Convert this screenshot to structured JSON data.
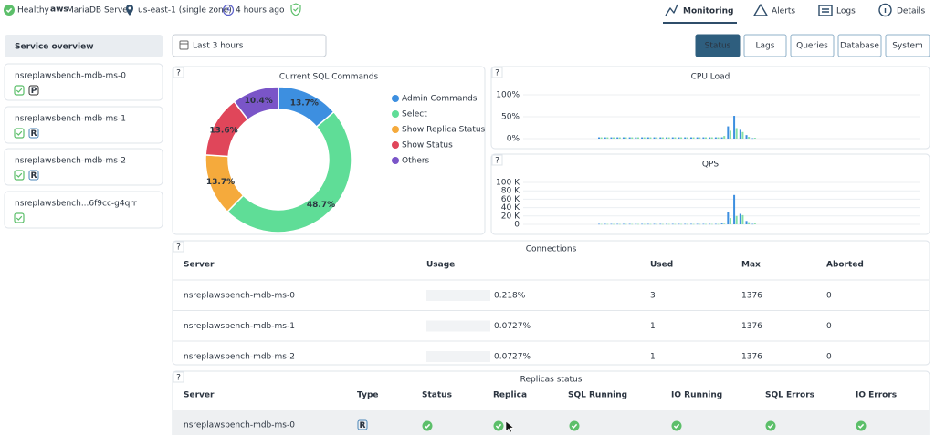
{
  "header": {
    "status": "Healthy",
    "provider": "aws",
    "engine": "MariaDB Server",
    "region": "us-east-1 (single zone)",
    "created": "4 hours ago",
    "tabs": [
      "Monitoring",
      "Alerts",
      "Logs",
      "Details"
    ]
  },
  "sidebar": {
    "title": "Service overview",
    "services": [
      {
        "name": "nsreplawsbench-mdb-ms-0",
        "role": "P"
      },
      {
        "name": "nsreplawsbench-mdb-ms-1",
        "role": "R"
      },
      {
        "name": "nsreplawsbench-mdb-ms-2",
        "role": "R"
      },
      {
        "name": "nsreplawsbench...6f9cc-g4qrr"
      }
    ]
  },
  "toolbar": {
    "range": "Last 3 hours",
    "views": [
      "Status",
      "Lags",
      "Queries",
      "Database",
      "System"
    ]
  },
  "sql_commands": {
    "type": "pie",
    "title": "Current SQL Commands",
    "help": "?",
    "categories": [
      "Admin Commands",
      "Select",
      "Show Replica Status",
      "Show Status",
      "Others"
    ],
    "values": [
      13.7,
      48.7,
      13.7,
      13.6,
      10.4
    ],
    "value_labels": [
      "13.7%",
      "48.7%",
      "13.7%",
      "13.6%",
      "10.4%"
    ],
    "colors": [
      "#3d8fe0",
      "#5fdd97",
      "#f5aa3c",
      "#e0465a",
      "#7a55c8"
    ]
  },
  "cpu_load": {
    "type": "bar",
    "title": "CPU Load",
    "help": "?",
    "ylim": [
      0,
      100
    ],
    "yticks": [
      {
        "value": 0,
        "label": "0%"
      },
      {
        "value": 50,
        "label": "50%"
      },
      {
        "value": 100,
        "label": "100%"
      }
    ],
    "grid": true,
    "series": [
      {
        "color": "#3d8fe0",
        "values": [
          3,
          3,
          3,
          3,
          3,
          3,
          3,
          3,
          3,
          3,
          3,
          3,
          3,
          3,
          3,
          3,
          3,
          3,
          3,
          3,
          3,
          28,
          52,
          20,
          8,
          1
        ]
      },
      {
        "color": "#86e0a6",
        "values": [
          3,
          3,
          3,
          3,
          3,
          3,
          3,
          3,
          3,
          3,
          3,
          3,
          3,
          3,
          3,
          3,
          3,
          3,
          3,
          3,
          6,
          18,
          24,
          15,
          4,
          2
        ]
      }
    ]
  },
  "qps": {
    "type": "bar",
    "title": "QPS",
    "help": "?",
    "ylim": [
      0,
      100000
    ],
    "yticks": [
      0,
      {
        "value": 20000,
        "label": "20 K"
      },
      {
        "value": 40000,
        "label": "40 K"
      },
      {
        "value": 60000,
        "label": "60 K"
      },
      {
        "value": 80000,
        "label": "80 K"
      },
      {
        "value": 100000,
        "label": "100 K"
      }
    ],
    "grid": true,
    "series": [
      {
        "color": "#3d8fe0",
        "values": [
          1000,
          1000,
          1000,
          1000,
          1000,
          1000,
          1000,
          1000,
          1000,
          1000,
          1000,
          1000,
          1000,
          1000,
          1000,
          1000,
          1000,
          1000,
          1000,
          1000,
          2000,
          30000,
          70000,
          25000,
          8000,
          1000
        ]
      },
      {
        "color": "#86e0a6",
        "values": [
          800,
          800,
          800,
          800,
          800,
          800,
          800,
          800,
          800,
          800,
          800,
          800,
          800,
          800,
          800,
          800,
          800,
          800,
          800,
          800,
          1500,
          15000,
          20000,
          22000,
          5000,
          2000
        ]
      }
    ]
  },
  "connections": {
    "title": "Connections",
    "help": "?",
    "columns": [
      "Server",
      "Usage",
      "Used",
      "Max",
      "Aborted"
    ],
    "rows": [
      [
        "nsreplawsbench-mdb-ms-0",
        "0.218%",
        3,
        1376,
        0
      ],
      [
        "nsreplawsbench-mdb-ms-1",
        "0.0727%",
        1,
        1376,
        0
      ],
      [
        "nsreplawsbench-mdb-ms-2",
        "0.0727%",
        1,
        1376,
        0
      ]
    ]
  },
  "replicas": {
    "title": "Replicas status",
    "help": "?",
    "columns": [
      "Server",
      "Type",
      "Status",
      "Replica",
      "SQL Running",
      "IO Running",
      "SQL Errors",
      "IO Errors"
    ],
    "rows": [
      [
        "nsreplawsbench-mdb-ms-0",
        "R"
      ]
    ]
  }
}
